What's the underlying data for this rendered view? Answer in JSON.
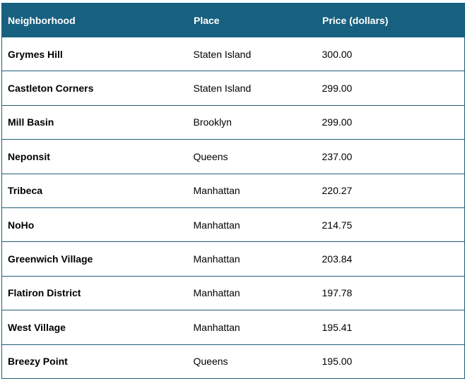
{
  "table": {
    "headers": [
      "Neighborhood",
      "Place",
      "Price (dollars)"
    ],
    "rows": [
      [
        "Grymes Hill",
        "Staten Island",
        "300.00"
      ],
      [
        "Castleton Corners",
        "Staten Island",
        "299.00"
      ],
      [
        "Mill Basin",
        "Brooklyn",
        "299.00"
      ],
      [
        "Neponsit",
        "Queens",
        "237.00"
      ],
      [
        "Tribeca",
        "Manhattan",
        "220.27"
      ],
      [
        "NoHo",
        "Manhattan",
        "214.75"
      ],
      [
        "Greenwich Village",
        "Manhattan",
        "203.84"
      ],
      [
        "Flatiron District",
        "Manhattan",
        "197.78"
      ],
      [
        "West Village",
        "Manhattan",
        "195.41"
      ],
      [
        "Breezy Point",
        "Queens",
        "195.00"
      ]
    ]
  },
  "colors": {
    "header_background": "#17607f",
    "header_text": "#ffffff",
    "border": "#1f5e78"
  }
}
